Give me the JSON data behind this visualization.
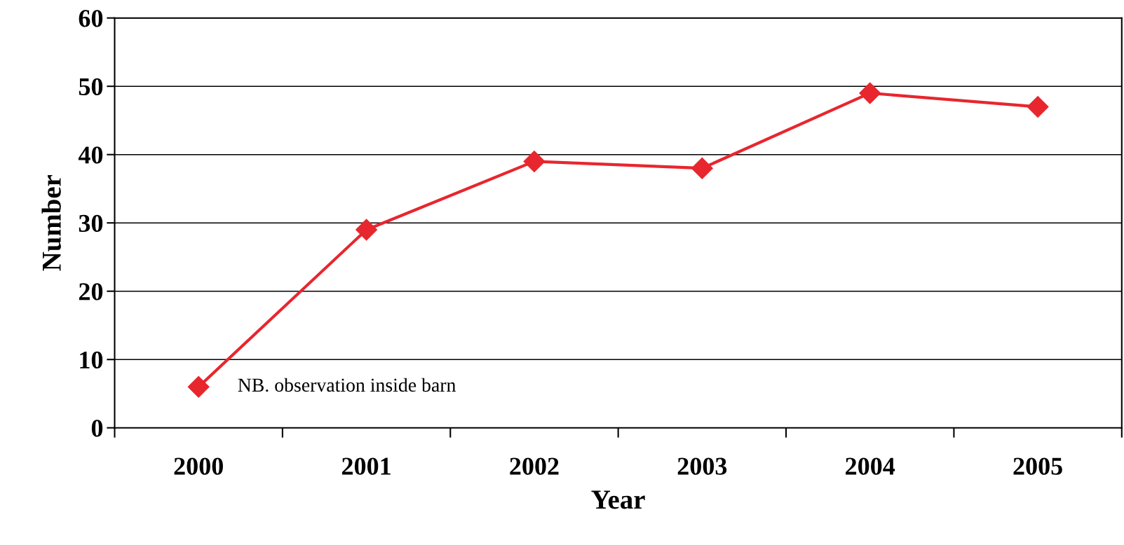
{
  "chart_data": {
    "type": "line",
    "xlabel": "Year",
    "ylabel": "Number",
    "categories": [
      "2000",
      "2001",
      "2002",
      "2003",
      "2004",
      "2005"
    ],
    "series": [
      {
        "color": "#e8262e",
        "values": [
          6,
          29,
          39,
          38,
          49,
          47
        ]
      }
    ],
    "ylim": [
      0,
      60
    ],
    "yticks": [
      0,
      10,
      20,
      30,
      40,
      50,
      60
    ],
    "grid": "y",
    "marker": "diamond",
    "line_style": "solid",
    "annotations": [
      {
        "text": "NB. observation inside barn",
        "x": "2000",
        "y": 6
      }
    ]
  }
}
